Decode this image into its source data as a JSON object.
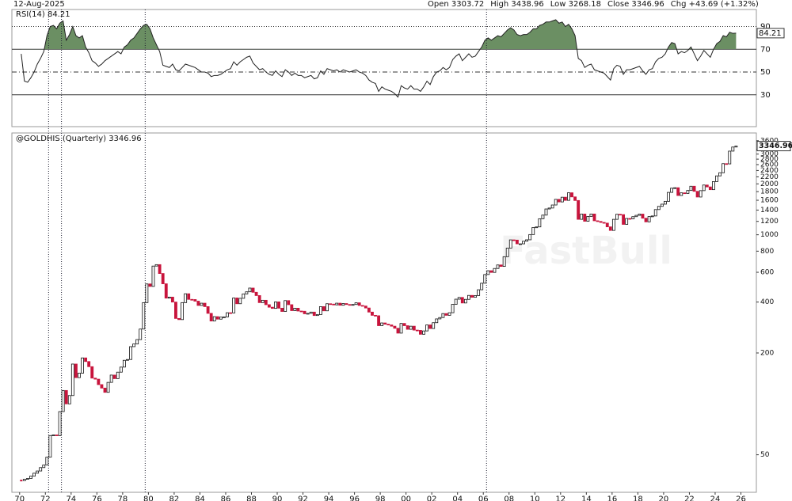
{
  "chart_data": {
    "type": "candlestick",
    "date": "12-Aug-2025",
    "quote": [
      "Open 3303.72",
      "High 3438.96",
      "Low 3268.18",
      "Close 3346.96",
      "Chg +43.69 (+1.32%)"
    ],
    "title": "@GOLDHIS (Quarterly) 3346.96",
    "watermark": "FastBull",
    "log_scale": true,
    "up_color": "#ffffff",
    "down_color": "#c8143c",
    "xlim": [
      1969.4,
      2027.2
    ],
    "xticks": [
      {
        "value": 1970,
        "label": "70"
      },
      {
        "value": 1972,
        "label": "72"
      },
      {
        "value": 1974,
        "label": "74"
      },
      {
        "value": 1976,
        "label": "76"
      },
      {
        "value": 1978,
        "label": "78"
      },
      {
        "value": 1980,
        "label": "80"
      },
      {
        "value": 1982,
        "label": "82"
      },
      {
        "value": 1984,
        "label": "84"
      },
      {
        "value": 1986,
        "label": "86"
      },
      {
        "value": 1988,
        "label": "88"
      },
      {
        "value": 1990,
        "label": "90"
      },
      {
        "value": 1992,
        "label": "92"
      },
      {
        "value": 1994,
        "label": "94"
      },
      {
        "value": 1996,
        "label": "96"
      },
      {
        "value": 1998,
        "label": "98"
      },
      {
        "value": 2000,
        "label": "00"
      },
      {
        "value": 2002,
        "label": "02"
      },
      {
        "value": 2004,
        "label": "04"
      },
      {
        "value": 2006,
        "label": "06"
      },
      {
        "value": 2008,
        "label": "08"
      },
      {
        "value": 2010,
        "label": "10"
      },
      {
        "value": 2012,
        "label": "12"
      },
      {
        "value": 2014,
        "label": "14"
      },
      {
        "value": 2016,
        "label": "16"
      },
      {
        "value": 2018,
        "label": "18"
      },
      {
        "value": 2020,
        "label": "20"
      },
      {
        "value": 2022,
        "label": "22"
      },
      {
        "value": 2024,
        "label": "24"
      },
      {
        "value": 2026,
        "label": "26"
      }
    ],
    "ylim": [
      30,
      4000
    ],
    "yticks": [
      50,
      200,
      400,
      600,
      800,
      1000,
      1200,
      1400,
      1600,
      1800,
      2000,
      2200,
      2400,
      2600,
      2800,
      3000,
      3200,
      3600
    ],
    "markers": [
      1972.25,
      1973.25,
      1979.75,
      2006.25
    ],
    "x": [
      1970.125,
      1970.375,
      1970.625,
      1970.875,
      1971.125,
      1971.375,
      1971.625,
      1971.875,
      1972.125,
      1972.375,
      1972.625,
      1972.875,
      1973.125,
      1973.375,
      1973.625,
      1973.875,
      1974.125,
      1974.375,
      1974.625,
      1974.875,
      1975.125,
      1975.375,
      1975.625,
      1975.875,
      1976.125,
      1976.375,
      1976.625,
      1976.875,
      1977.125,
      1977.375,
      1977.625,
      1977.875,
      1978.125,
      1978.375,
      1978.625,
      1978.875,
      1979.125,
      1979.375,
      1979.625,
      1979.875,
      1980.125,
      1980.375,
      1980.625,
      1980.875,
      1981.125,
      1981.375,
      1981.625,
      1981.875,
      1982.125,
      1982.375,
      1982.625,
      1982.875,
      1983.125,
      1983.375,
      1983.625,
      1983.875,
      1984.125,
      1984.375,
      1984.625,
      1984.875,
      1985.125,
      1985.375,
      1985.625,
      1985.875,
      1986.125,
      1986.375,
      1986.625,
      1986.875,
      1987.125,
      1987.375,
      1987.625,
      1987.875,
      1988.125,
      1988.375,
      1988.625,
      1988.875,
      1989.125,
      1989.375,
      1989.625,
      1989.875,
      1990.125,
      1990.375,
      1990.625,
      1990.875,
      1991.125,
      1991.375,
      1991.625,
      1991.875,
      1992.125,
      1992.375,
      1992.625,
      1992.875,
      1993.125,
      1993.375,
      1993.625,
      1993.875,
      1994.125,
      1994.375,
      1994.625,
      1994.875,
      1995.125,
      1995.375,
      1995.625,
      1995.875,
      1996.125,
      1996.375,
      1996.625,
      1996.875,
      1997.125,
      1997.375,
      1997.625,
      1997.875,
      1998.125,
      1998.375,
      1998.625,
      1998.875,
      1999.125,
      1999.375,
      1999.625,
      1999.875,
      2000.125,
      2000.375,
      2000.625,
      2000.875,
      2001.125,
      2001.375,
      2001.625,
      2001.875,
      2002.125,
      2002.375,
      2002.625,
      2002.875,
      2003.125,
      2003.375,
      2003.625,
      2003.875,
      2004.125,
      2004.375,
      2004.625,
      2004.875,
      2005.125,
      2005.375,
      2005.625,
      2005.875,
      2006.125,
      2006.375,
      2006.625,
      2006.875,
      2007.125,
      2007.375,
      2007.625,
      2007.875,
      2008.125,
      2008.375,
      2008.625,
      2008.875,
      2009.125,
      2009.375,
      2009.625,
      2009.875,
      2010.125,
      2010.375,
      2010.625,
      2010.875,
      2011.125,
      2011.375,
      2011.625,
      2011.875,
      2012.125,
      2012.375,
      2012.625,
      2012.875,
      2013.125,
      2013.375,
      2013.625,
      2013.875,
      2014.125,
      2014.375,
      2014.625,
      2014.875,
      2015.125,
      2015.375,
      2015.625,
      2015.875,
      2016.125,
      2016.375,
      2016.625,
      2016.875,
      2017.125,
      2017.375,
      2017.625,
      2017.875,
      2018.125,
      2018.375,
      2018.625,
      2018.875,
      2019.125,
      2019.375,
      2019.625,
      2019.875,
      2020.125,
      2020.375,
      2020.625,
      2020.875,
      2021.125,
      2021.375,
      2021.625,
      2021.875,
      2022.125,
      2022.375,
      2022.625,
      2022.875,
      2023.125,
      2023.375,
      2023.625,
      2023.875,
      2024.125,
      2024.375,
      2024.625,
      2024.875,
      2025.125,
      2025.375,
      2025.625
    ],
    "values": [
      35.2,
      35.8,
      36.2,
      37.4,
      38.9,
      40.1,
      42.0,
      43.5,
      48.4,
      65.0,
      65.5,
      64.9,
      90,
      120,
      100,
      112,
      172,
      143,
      152,
      187,
      178,
      166,
      142,
      140,
      130,
      124,
      117,
      134,
      148,
      141,
      154,
      165,
      181,
      183,
      218,
      226,
      240,
      277,
      397,
      512,
      495,
      653,
      666,
      590,
      513,
      422,
      428,
      400,
      320,
      315,
      397,
      448,
      415,
      414,
      405,
      382,
      394,
      376,
      343,
      309,
      328,
      317,
      326,
      327,
      346,
      345,
      423,
      391,
      421,
      447,
      460,
      484,
      457,
      437,
      397,
      410,
      386,
      373,
      367,
      401,
      368,
      352,
      408,
      386,
      356,
      368,
      354,
      353,
      341,
      343,
      349,
      333,
      337,
      376,
      355,
      391,
      389,
      385,
      394,
      383,
      392,
      387,
      384,
      387,
      396,
      382,
      379,
      369,
      349,
      334,
      332,
      290,
      301,
      296,
      293,
      288,
      280,
      262,
      299,
      290,
      276,
      288,
      273,
      272,
      258,
      270,
      293,
      279,
      302,
      318,
      324,
      342,
      334,
      346,
      388,
      416,
      426,
      395,
      415,
      438,
      427,
      437,
      473,
      517,
      582,
      613,
      599,
      632,
      663,
      650,
      742,
      834,
      933,
      930,
      884,
      884,
      916,
      934,
      1003,
      1104,
      1113,
      1244,
      1307,
      1421,
      1439,
      1500,
      1620,
      1564,
      1668,
      1598,
      1772,
      1675,
      1595,
      1234,
      1326,
      1202,
      1284,
      1327,
      1210,
      1199,
      1183,
      1172,
      1114,
      1061,
      1234,
      1322,
      1316,
      1152,
      1249,
      1242,
      1280,
      1303,
      1325,
      1253,
      1192,
      1282,
      1292,
      1409,
      1472,
      1517,
      1577,
      1781,
      1886,
      1898,
      1707,
      1770,
      1756,
      1828,
      1937,
      1807,
      1672,
      1824,
      1969,
      1919,
      1848,
      2063,
      2230,
      2327,
      2634,
      2625,
      3124,
      3303,
      3346.96
    ],
    "rsi": {
      "type": "line",
      "title": "RSI(14) 84.21",
      "color": "#222222",
      "fill_color": "#6b8f63",
      "ylim": [
        2,
        105
      ],
      "yticks": [
        30,
        50,
        70,
        90
      ],
      "values": [
        66,
        42,
        41,
        45,
        50,
        57,
        62,
        68,
        82,
        90,
        91,
        88,
        93,
        95,
        78,
        83,
        90,
        82,
        80,
        82,
        72,
        67,
        60,
        58,
        55,
        57,
        60,
        62,
        64,
        66,
        68,
        66,
        72,
        74,
        78,
        80,
        84,
        88,
        91,
        92,
        88,
        80,
        74,
        68,
        56,
        55,
        54,
        57,
        52,
        51,
        54,
        57,
        56,
        55,
        54,
        52,
        50,
        50,
        49,
        46,
        47,
        47,
        48,
        50,
        52,
        53,
        59,
        56,
        59,
        61,
        63,
        64,
        58,
        55,
        52,
        53,
        50,
        48,
        47,
        51,
        48,
        46,
        52,
        50,
        47,
        49,
        47,
        47,
        45,
        46,
        47,
        44,
        45,
        51,
        48,
        53,
        52,
        51,
        52,
        50,
        52,
        51,
        50,
        51,
        52,
        50,
        49,
        47,
        43,
        41,
        40,
        33,
        37,
        35,
        34,
        33,
        31,
        28,
        38,
        36,
        35,
        38,
        35,
        35,
        33,
        37,
        42,
        39,
        46,
        50,
        51,
        54,
        52,
        54,
        61,
        64,
        66,
        60,
        63,
        66,
        63,
        64,
        68,
        72,
        78,
        80,
        78,
        80,
        82,
        81,
        84,
        87,
        89,
        87,
        83,
        82,
        83,
        83,
        85,
        88,
        88,
        91,
        92,
        94,
        94,
        95,
        96,
        93,
        94,
        90,
        92,
        88,
        82,
        62,
        60,
        54,
        56,
        57,
        52,
        51,
        50,
        49,
        46,
        43,
        53,
        56,
        55,
        48,
        52,
        52,
        53,
        54,
        55,
        51,
        48,
        52,
        53,
        59,
        62,
        63,
        66,
        72,
        76,
        75,
        66,
        68,
        67,
        69,
        72,
        66,
        60,
        64,
        69,
        66,
        63,
        70,
        75,
        77,
        82,
        81,
        85,
        84,
        84.21
      ]
    }
  }
}
